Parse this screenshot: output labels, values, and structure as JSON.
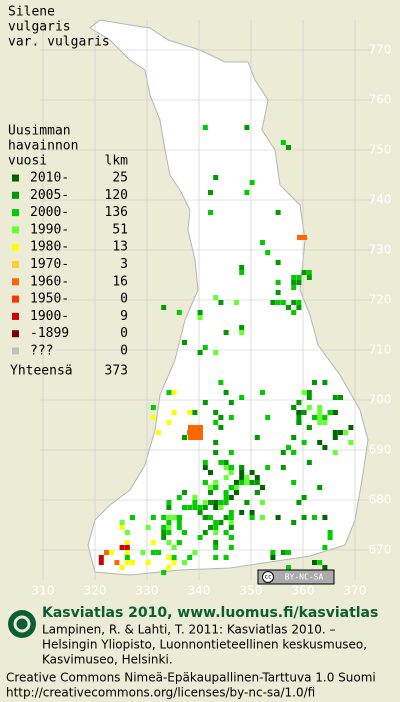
{
  "title_lines": [
    "Silene",
    "vulgaris",
    "var. vulgaris"
  ],
  "legend": {
    "heading": [
      "Uusimman",
      "havainnon"
    ],
    "year_header": "vuosi",
    "count_header": "lkm",
    "rows": [
      {
        "label": "2010-",
        "count": 25,
        "color": "#006400"
      },
      {
        "label": "2005-",
        "count": 120,
        "color": "#009900"
      },
      {
        "label": "2000-",
        "count": 136,
        "color": "#00cc00"
      },
      {
        "label": "1990-",
        "count": 51,
        "color": "#66ff33"
      },
      {
        "label": "1980-",
        "count": 13,
        "color": "#ffff00"
      },
      {
        "label": "1970-",
        "count": 3,
        "color": "#ffcc33"
      },
      {
        "label": "1960-",
        "count": 16,
        "color": "#ff6600"
      },
      {
        "label": "1950-",
        "count": 0,
        "color": "#ff3300"
      },
      {
        "label": "1900-",
        "count": 9,
        "color": "#cc0000"
      },
      {
        "label": "-1899",
        "count": 0,
        "color": "#800000"
      },
      {
        "label": "???",
        "count": 0,
        "color": "#c0c0c0"
      }
    ],
    "total_label": "Yhteensä",
    "total": 373
  },
  "map": {
    "x_ticks": [
      310,
      320,
      330,
      340,
      350,
      360,
      370
    ],
    "y_ticks": [
      670,
      680,
      690,
      700,
      710,
      720,
      730,
      740,
      750,
      760,
      770
    ]
  },
  "license_badge": "BY-NC-SA",
  "footer": {
    "brand": "Kasviatlas 2010, www.luomus.fi/kasviatlas",
    "citation": [
      "Lampinen, R. & Lahti, T. 2011: Kasviatlas 2010. –",
      "Helsingin Yliopisto, Luonnontieteellinen keskusmuseo,",
      "Kasvimuseo, Helsinki."
    ],
    "license": [
      "Creative Commons Nimeä-Epäkaupallinen-Tarttuva 1.0 Suomi",
      "http://creativecommons.org/licenses/by-nc-sa/1.0/fi"
    ]
  }
}
